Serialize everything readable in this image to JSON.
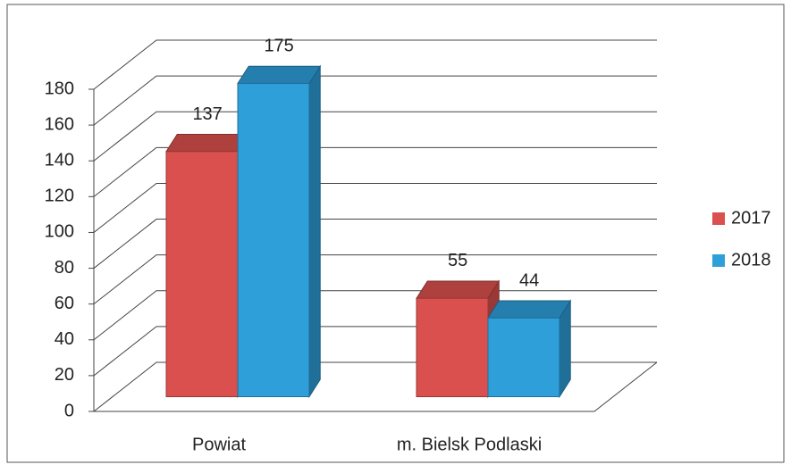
{
  "chart_data": {
    "type": "bar3d",
    "categories": [
      "Powiat",
      "m. Bielsk Podlaski"
    ],
    "series": [
      {
        "name": "2017",
        "color": "#d9504e",
        "values": [
          137,
          55
        ]
      },
      {
        "name": "2018",
        "color": "#2e9fd9",
        "values": [
          175,
          44
        ]
      }
    ],
    "ylim": [
      0,
      180
    ],
    "yticks": [
      0,
      20,
      40,
      60,
      80,
      100,
      120,
      140,
      160,
      180
    ],
    "grid": true,
    "legend": "right"
  }
}
